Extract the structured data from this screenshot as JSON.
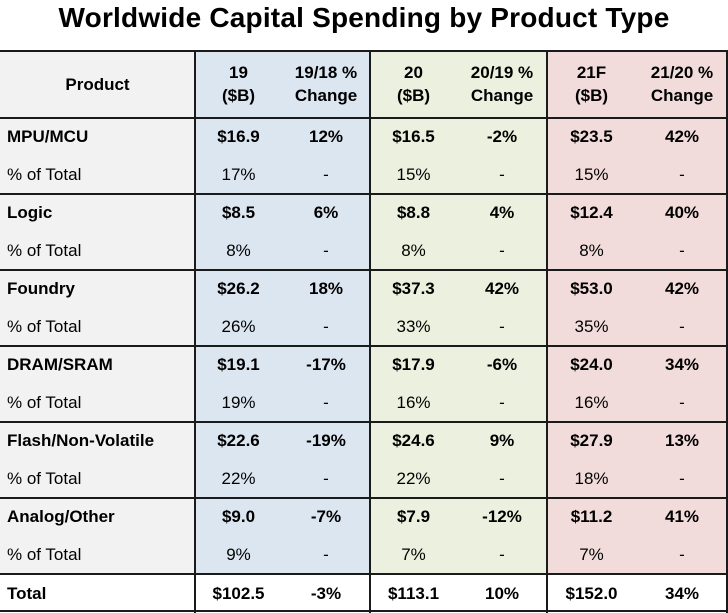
{
  "title": "Worldwide Capital Spending by Product Type",
  "header": {
    "product": "Product",
    "cols": [
      {
        "l1": "19",
        "l2": "($B)"
      },
      {
        "l1": "19/18 %",
        "l2": "Change"
      },
      {
        "l1": "20",
        "l2": "($B)"
      },
      {
        "l1": "20/19 %",
        "l2": "Change"
      },
      {
        "l1": "21F",
        "l2": "($B)"
      },
      {
        "l1": "21/20 %",
        "l2": "Change"
      }
    ]
  },
  "colors": {
    "product_bg": "#f2f2f2",
    "y19_bg": "#dce6f1",
    "y20_bg": "#ebf1de",
    "y21_bg": "#f2dcdb",
    "border": "#1a1a1a"
  },
  "chart_data": {
    "type": "table",
    "title": "Worldwide Capital Spending by Product Type",
    "columns": [
      "Product",
      "19 ($B)",
      "19/18 % Change",
      "20 ($B)",
      "20/19 % Change",
      "21F ($B)",
      "21/20 % Change"
    ],
    "rows": [
      [
        "MPU/MCU",
        "$16.9",
        "12%",
        "$16.5",
        "-2%",
        "$23.5",
        "42%"
      ],
      [
        "% of Total",
        "17%",
        "-",
        "15%",
        "-",
        "15%",
        "-"
      ],
      [
        "Logic",
        "$8.5",
        "6%",
        "$8.8",
        "4%",
        "$12.4",
        "40%"
      ],
      [
        "% of Total",
        "8%",
        "-",
        "8%",
        "-",
        "8%",
        "-"
      ],
      [
        "Foundry",
        "$26.2",
        "18%",
        "$37.3",
        "42%",
        "$53.0",
        "42%"
      ],
      [
        "% of Total",
        "26%",
        "-",
        "33%",
        "-",
        "35%",
        "-"
      ],
      [
        "DRAM/SRAM",
        "$19.1",
        "-17%",
        "$17.9",
        "-6%",
        "$24.0",
        "34%"
      ],
      [
        "% of Total",
        "19%",
        "-",
        "16%",
        "-",
        "16%",
        "-"
      ],
      [
        "Flash/Non-Volatile",
        "$22.6",
        "-19%",
        "$24.6",
        "9%",
        "$27.9",
        "13%"
      ],
      [
        "% of Total",
        "22%",
        "-",
        "22%",
        "-",
        "18%",
        "-"
      ],
      [
        "Analog/Other",
        "$9.0",
        "-7%",
        "$7.9",
        "-12%",
        "$11.2",
        "41%"
      ],
      [
        "% of Total",
        "9%",
        "-",
        "7%",
        "-",
        "7%",
        "-"
      ],
      [
        "Total",
        "$102.5",
        "-3%",
        "$113.1",
        "10%",
        "$152.0",
        "34%"
      ]
    ]
  }
}
